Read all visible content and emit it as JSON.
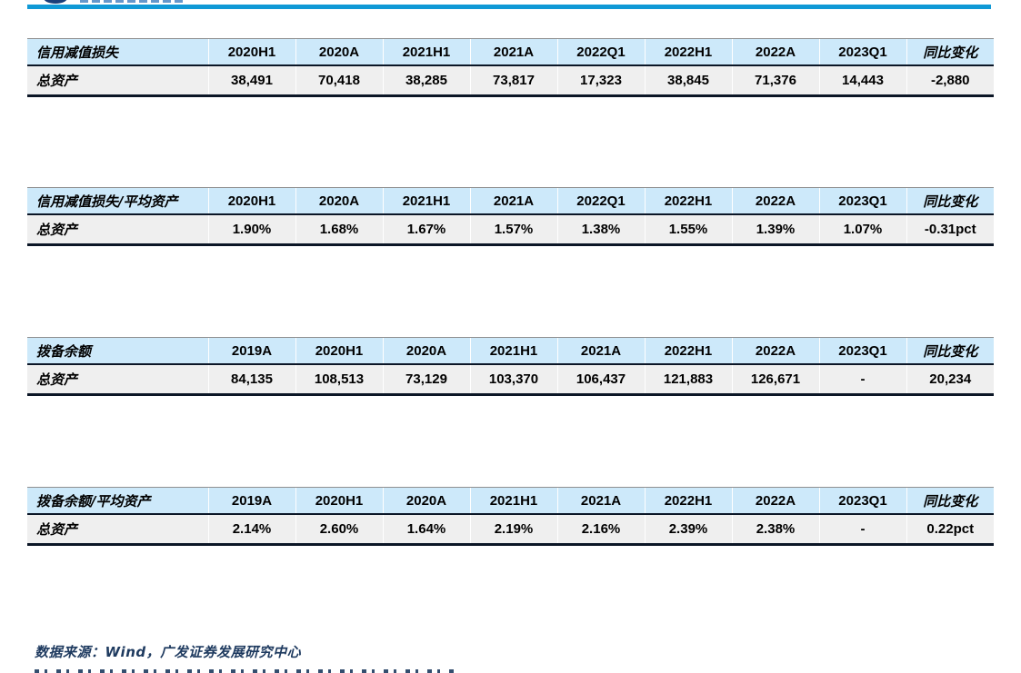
{
  "page": {
    "source_note": "数据来源：Wind，广发证券发展研究中心",
    "colors": {
      "accent_rule_blue": "#1099d6",
      "table_header_bg": "#cde9fa",
      "table_row_bg": "#efefef",
      "table_border_dark": "#0b1626",
      "note_navy": "#1e3a5f"
    }
  },
  "tables": [
    {
      "title": "信用减值损失",
      "headers": [
        "2020H1",
        "2020A",
        "2021H1",
        "2021A",
        "2022Q1",
        "2022H1",
        "2022A",
        "2023Q1",
        "同比变化"
      ],
      "row_label": "总资产",
      "values": [
        "38,491",
        "70,418",
        "38,285",
        "73,817",
        "17,323",
        "38,845",
        "71,376",
        "14,443",
        "-2,880"
      ]
    },
    {
      "title": "信用减值损失/平均资产",
      "headers": [
        "2020H1",
        "2020A",
        "2021H1",
        "2021A",
        "2022Q1",
        "2022H1",
        "2022A",
        "2023Q1",
        "同比变化"
      ],
      "row_label": "总资产",
      "values": [
        "1.90%",
        "1.68%",
        "1.67%",
        "1.57%",
        "1.38%",
        "1.55%",
        "1.39%",
        "1.07%",
        "-0.31pct"
      ]
    },
    {
      "title": "拨备余额",
      "headers": [
        "2019A",
        "2020H1",
        "2020A",
        "2021H1",
        "2021A",
        "2022H1",
        "2022A",
        "2023Q1",
        "同比变化"
      ],
      "row_label": "总资产",
      "values": [
        "84,135",
        "108,513",
        "73,129",
        "103,370",
        "106,437",
        "121,883",
        "126,671",
        "-",
        "20,234"
      ]
    },
    {
      "title": "拨备余额/平均资产",
      "headers": [
        "2019A",
        "2020H1",
        "2020A",
        "2021H1",
        "2021A",
        "2022H1",
        "2022A",
        "2023Q1",
        "同比变化"
      ],
      "row_label": "总资产",
      "values": [
        "2.14%",
        "2.60%",
        "1.64%",
        "2.19%",
        "2.16%",
        "2.39%",
        "2.38%",
        "-",
        "0.22pct"
      ]
    }
  ]
}
